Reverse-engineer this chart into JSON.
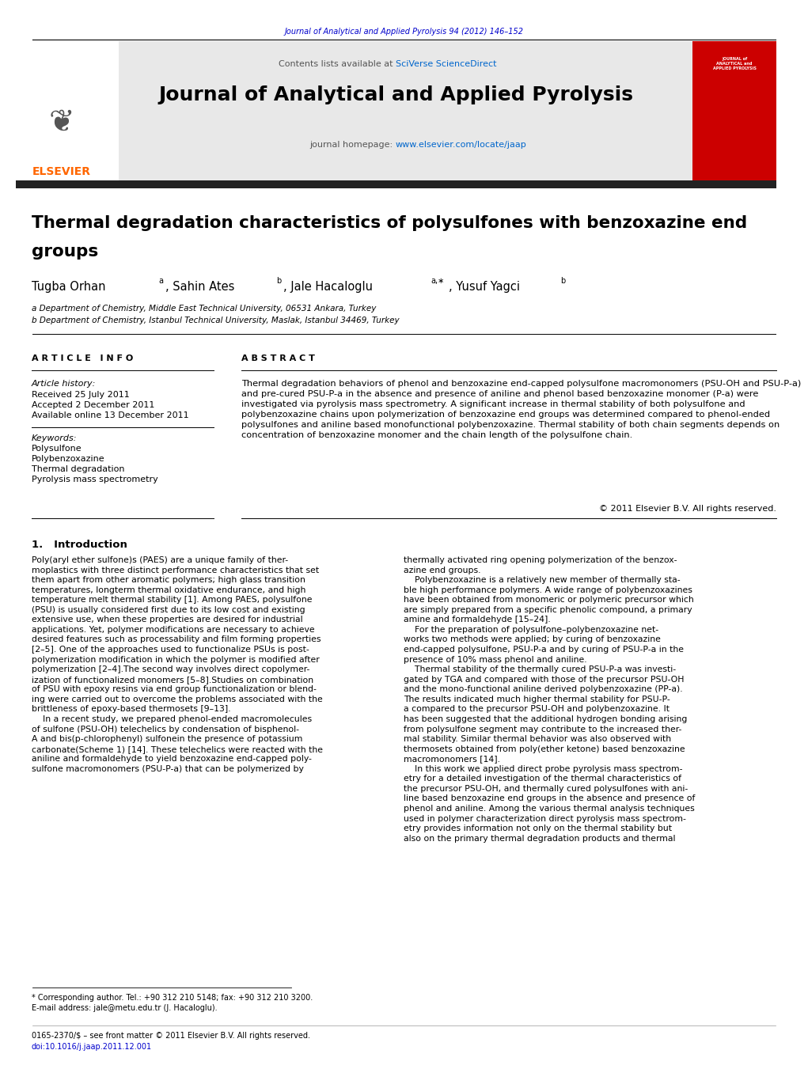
{
  "page_width": 10.21,
  "page_height": 13.51,
  "bg_color": "#ffffff",
  "journal_ref_text": "Journal of Analytical and Applied Pyrolysis 94 (2012) 146–152",
  "journal_ref_color": "#0000cc",
  "contents_text": "Contents lists available at ",
  "sciverse_text": "SciVerse ScienceDirect",
  "sciverse_color": "#0066cc",
  "journal_name": "Journal of Analytical and Applied Pyrolysis",
  "homepage_text": "journal homepage: ",
  "homepage_url": "www.elsevier.com/locate/jaap",
  "homepage_url_color": "#0066cc",
  "header_bg": "#e8e8e8",
  "black_bar_color": "#222222",
  "article_title_line1": "Thermal degradation characteristics of polysulfones with benzoxazine end",
  "article_title_line2": "groups",
  "affil_a": "a Department of Chemistry, Middle East Technical University, 06531 Ankara, Turkey",
  "affil_b": "b Department of Chemistry, Istanbul Technical University, Maslak, Istanbul 34469, Turkey",
  "article_info_header": "A R T I C L E   I N F O",
  "abstract_header": "A B S T R A C T",
  "article_history_label": "Article history:",
  "received_text": "Received 25 July 2011",
  "accepted_text": "Accepted 2 December 2011",
  "available_text": "Available online 13 December 2011",
  "keywords_label": "Keywords:",
  "keyword1": "Polysulfone",
  "keyword2": "Polybenzoxazine",
  "keyword3": "Thermal degradation",
  "keyword4": "Pyrolysis mass spectrometry",
  "abstract_text": "Thermal degradation behaviors of phenol and benzoxazine end-capped polysulfone macromonomers (PSU-OH and PSU-P-a) and pre-cured PSU-P-a in the absence and presence of aniline and phenol based benzoxazine monomer (P-a) were investigated via pyrolysis mass spectrometry. A significant increase in thermal stability of both polysulfone and polybenzoxazine chains upon polymerization of benzoxazine end groups was determined compared to phenol-ended polysulfones and aniline based monofunctional polybenzoxazine. Thermal stability of both chain segments depends on concentration of benzoxazine monomer and the chain length of the polysulfone chain.",
  "copyright_text": "© 2011 Elsevier B.V. All rights reserved.",
  "intro_header": "1.   Introduction",
  "intro_col1": "Poly(aryl ether sulfone)s (PAES) are a unique family of ther-\nmoplastics with three distinct performance characteristics that set\nthem apart from other aromatic polymers; high glass transition\ntemperatures, longterm thermal oxidative endurance, and high\ntemperature melt thermal stability [1]. Among PAES, polysulfone\n(PSU) is usually considered first due to its low cost and existing\nextensive use, when these properties are desired for industrial\napplications. Yet, polymer modifications are necessary to achieve\ndesired features such as processability and film forming properties\n[2–5]. One of the approaches used to functionalize PSUs is post-\npolymerization modification in which the polymer is modified after\npolymerization [2–4].The second way involves direct copolymer-\nization of functionalized monomers [5–8].Studies on combination\nof PSU with epoxy resins via end group functionalization or blend-\ning were carried out to overcome the problems associated with the\nbrittleness of epoxy-based thermosets [9–13].\n    In a recent study, we prepared phenol-ended macromolecules\nof sulfone (PSU-OH) telechelics by condensation of bisphenol-\nA and bis(p-chlorophenyl) sulfonein the presence of potassium\ncarbonate(Scheme 1) [14]. These telechelics were reacted with the\naniline and formaldehyde to yield benzoxazine end-capped poly-\nsulfone macromonomers (PSU-P-a) that can be polymerized by",
  "intro_col2": "thermally activated ring opening polymerization of the benzox-\nazine end groups.\n    Polybenzoxazine is a relatively new member of thermally sta-\nble high performance polymers. A wide range of polybenzoxazines\nhave been obtained from monomeric or polymeric precursor which\nare simply prepared from a specific phenolic compound, a primary\namine and formaldehyde [15–24].\n    For the preparation of polysulfone–polybenzoxazine net-\nworks two methods were applied; by curing of benzoxazine\nend-capped polysulfone, PSU-P-a and by curing of PSU-P-a in the\npresence of 10% mass phenol and aniline.\n    Thermal stability of the thermally cured PSU-P-a was investi-\ngated by TGA and compared with those of the precursor PSU-OH\nand the mono-functional aniline derived polybenzoxazine (PP-a).\nThe results indicated much higher thermal stability for PSU-P-\na compared to the precursor PSU-OH and polybenzoxazine. It\nhas been suggested that the additional hydrogen bonding arising\nfrom polysulfone segment may contribute to the increased ther-\nmal stability. Similar thermal behavior was also observed with\nthermosets obtained from poly(ether ketone) based benzoxazine\nmacromonomers [14].\n    In this work we applied direct probe pyrolysis mass spectrom-\netry for a detailed investigation of the thermal characteristics of\nthe precursor PSU-OH, and thermally cured polysulfones with ani-\nline based benzoxazine end groups in the absence and presence of\nphenol and aniline. Among the various thermal analysis techniques\nused in polymer characterization direct pyrolysis mass spectrom-\netry provides information not only on the thermal stability but\nalso on the primary thermal degradation products and thermal",
  "footnote_corr": "* Corresponding author. Tel.: +90 312 210 5148; fax: +90 312 210 3200.",
  "footnote_email": "E-mail address: jale@metu.edu.tr (J. Hacaloglu).",
  "footer_issn": "0165-2370/$ – see front matter © 2011 Elsevier B.V. All rights reserved.",
  "footer_doi": "doi:10.1016/j.jaap.2011.12.001",
  "elsevier_color": "#ff6600",
  "red_journal_bg": "#cc0000"
}
